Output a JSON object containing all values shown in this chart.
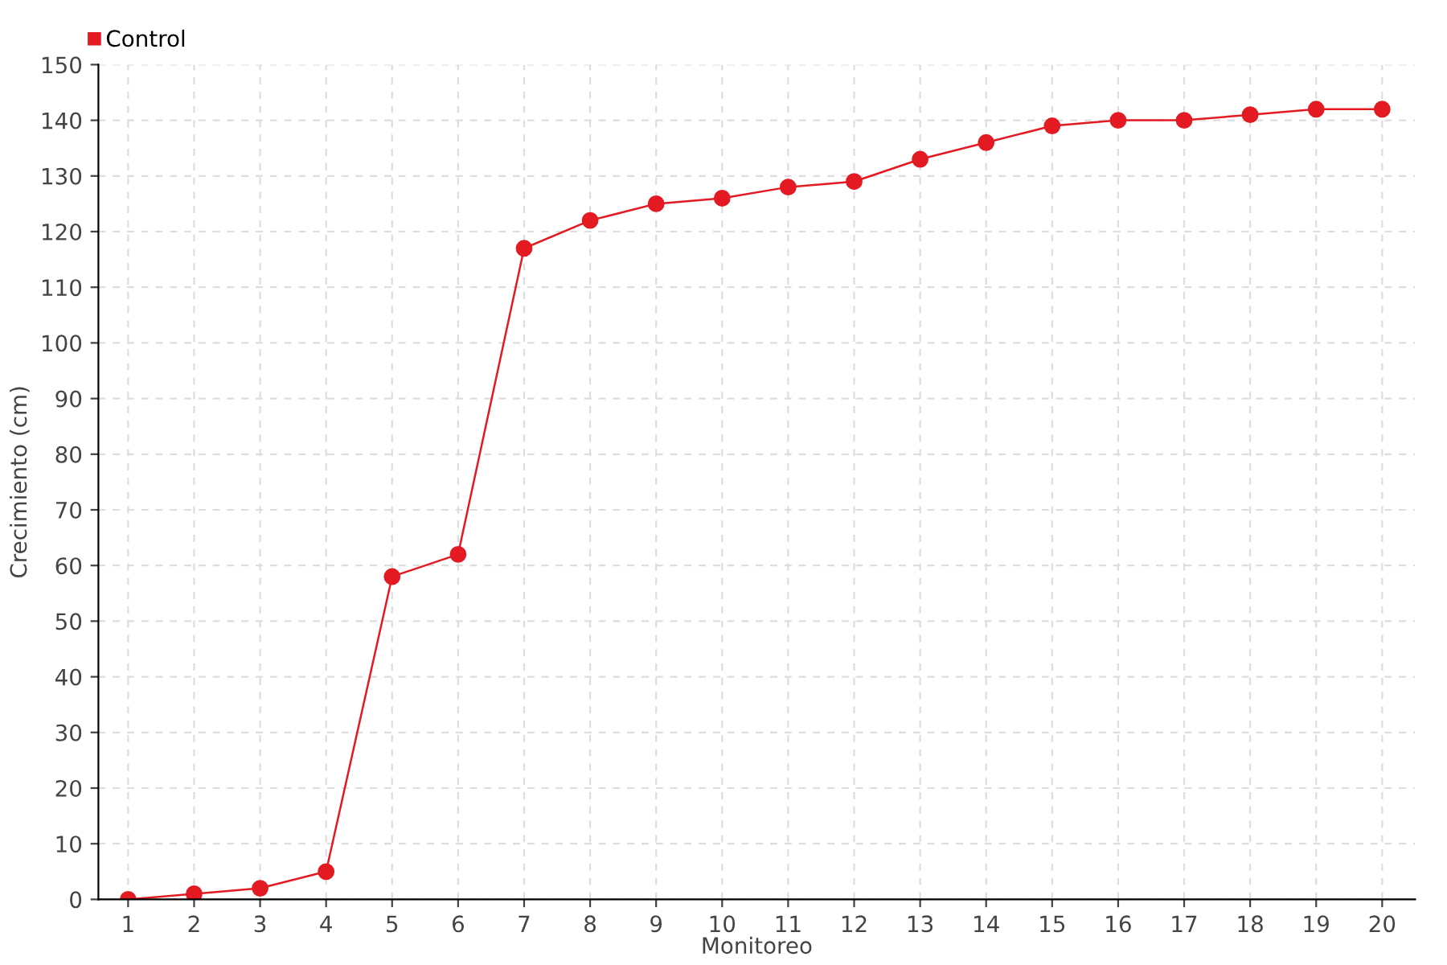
{
  "chart_data": {
    "type": "line",
    "xlabel": "Monitoreo",
    "ylabel": "Crecimiento (cm)",
    "categories": [
      "1",
      "2",
      "3",
      "4",
      "5",
      "6",
      "7",
      "8",
      "9",
      "10",
      "11",
      "12",
      "13",
      "14",
      "15",
      "16",
      "17",
      "18",
      "19",
      "20"
    ],
    "series": [
      {
        "name": "Control",
        "color": "#e41a23",
        "values": [
          0,
          1,
          2,
          5,
          58,
          62,
          117,
          122,
          125,
          126,
          128,
          129,
          133,
          136,
          139,
          140,
          140,
          141,
          142,
          142
        ]
      }
    ],
    "ylim": [
      0,
      150
    ],
    "yticks": [
      0,
      10,
      20,
      30,
      40,
      50,
      60,
      70,
      80,
      90,
      100,
      110,
      120,
      130,
      140,
      150
    ],
    "grid": true,
    "legend": "top left",
    "marker": "circle",
    "line_style": "solid"
  }
}
